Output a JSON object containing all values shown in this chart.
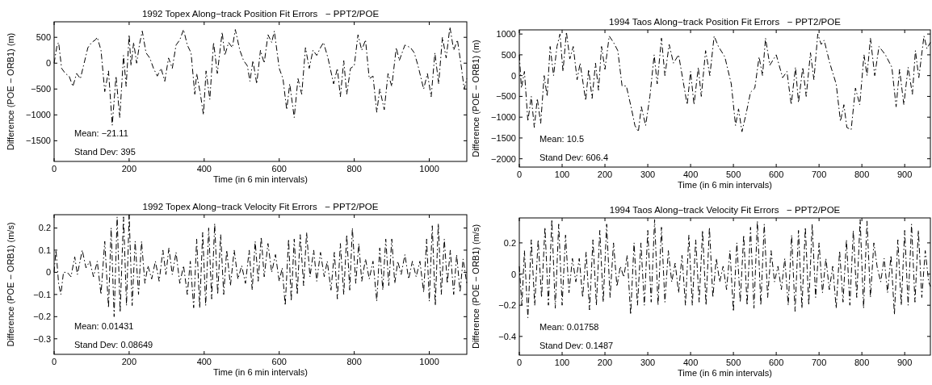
{
  "chart_data": [
    {
      "type": "line",
      "title": "1992 Topex Along−track Position Fit Errors   − PPT2/POE",
      "xlabel": "Time (in 6 min intervals)",
      "ylabel": "Difference (POE − ORB1) (m)",
      "xlim": [
        0,
        1100
      ],
      "ylim": [
        -1900,
        800
      ],
      "xticks": [
        0,
        200,
        400,
        600,
        800,
        1000
      ],
      "yticks": [
        -1500,
        -1000,
        -500,
        0,
        500
      ],
      "grid": false,
      "line_style": "dashed",
      "annotations": [
        "Mean: −21.11",
        "Stand Dev: 395"
      ],
      "series": [
        {
          "color": "#000000",
          "x": [
            0,
            8,
            12,
            20,
            30,
            40,
            50,
            60,
            70,
            80,
            90,
            100,
            110,
            115,
            125,
            135,
            145,
            155,
            165,
            175,
            185,
            192,
            200,
            205,
            212,
            220,
            228,
            235,
            245,
            255,
            265,
            275,
            285,
            295,
            305,
            315,
            325,
            335,
            345,
            355,
            365,
            375,
            380,
            390,
            398,
            405,
            415,
            425,
            435,
            448,
            455,
            465,
            475,
            483,
            495,
            505,
            515,
            522,
            530,
            540,
            550,
            560,
            570,
            580,
            587,
            600,
            610,
            620,
            628,
            640,
            650,
            660,
            670,
            680,
            690,
            700,
            710,
            718,
            730,
            745,
            755,
            763,
            772,
            780,
            790,
            800,
            810,
            820,
            830,
            840,
            850,
            860,
            868,
            880,
            890,
            900,
            912,
            920,
            935,
            950,
            960,
            970,
            985,
            995,
            1005,
            1015,
            1025,
            1035,
            1045,
            1055,
            1065,
            1075,
            1085,
            1093,
            1100
          ],
          "values": [
            0,
            350,
            400,
            -100,
            -200,
            -250,
            -450,
            -200,
            -300,
            0,
            300,
            400,
            450,
            500,
            250,
            -550,
            -150,
            -1200,
            -250,
            -1050,
            150,
            -450,
            550,
            -50,
            400,
            0,
            380,
            620,
            200,
            100,
            -100,
            -250,
            -100,
            -350,
            100,
            -100,
            350,
            450,
            650,
            350,
            200,
            -600,
            -200,
            -600,
            -1000,
            -150,
            -700,
            400,
            -200,
            600,
            150,
            400,
            300,
            650,
            250,
            50,
            -50,
            -350,
            50,
            -400,
            250,
            0,
            550,
            400,
            620,
            -100,
            -300,
            -900,
            -400,
            -1050,
            -300,
            -600,
            300,
            -100,
            250,
            150,
            300,
            400,
            100,
            -400,
            -100,
            -650,
            50,
            -600,
            -100,
            -50,
            550,
            250,
            450,
            -300,
            -250,
            -950,
            -500,
            -900,
            -200,
            -450,
            300,
            50,
            350,
            300,
            200,
            -50,
            -500,
            -200,
            -650,
            200,
            -400,
            500,
            100,
            700,
            250,
            450,
            -50,
            -500,
            -300
          ]
        }
      ]
    },
    {
      "type": "line",
      "title": "1994 Taos Along−track Position Fit Errors   − PPT2/POE",
      "xlabel": "Time (in 6 min intervals)",
      "ylabel": "Difference (POE − ORB1) (m)",
      "xlim": [
        0,
        960
      ],
      "ylim": [
        -2200,
        1100
      ],
      "xticks": [
        0,
        100,
        200,
        300,
        400,
        500,
        600,
        700,
        800,
        900
      ],
      "yticks": [
        -2000,
        -1500,
        -1000,
        -500,
        0,
        500,
        1000
      ],
      "grid": false,
      "line_style": "dashed",
      "annotations": [
        "Mean: 10.5",
        "Stand Dev: 606.4"
      ],
      "series": [
        {
          "color": "#000000",
          "x": [
            0,
            5,
            12,
            20,
            28,
            35,
            42,
            50,
            58,
            65,
            72,
            80,
            88,
            95,
            102,
            110,
            118,
            126,
            135,
            142,
            155,
            162,
            170,
            178,
            185,
            192,
            200,
            210,
            220,
            230,
            240,
            250,
            262,
            270,
            278,
            285,
            295,
            305,
            315,
            322,
            332,
            340,
            350,
            360,
            372,
            382,
            392,
            400,
            408,
            418,
            425,
            435,
            445,
            455,
            465,
            480,
            495,
            505,
            512,
            520,
            530,
            540,
            550,
            560,
            568,
            575,
            585,
            600,
            615,
            625,
            635,
            645,
            652,
            662,
            670,
            680,
            688,
            697,
            705,
            712,
            725,
            740,
            750,
            758,
            765,
            775,
            785,
            795,
            805,
            812,
            820,
            830,
            840,
            855,
            870,
            880,
            888,
            898,
            908,
            918,
            925,
            933,
            945,
            952,
            960
          ],
          "values": [
            500,
            -300,
            100,
            -1100,
            -500,
            -1250,
            -550,
            -1150,
            0,
            -500,
            700,
            0,
            700,
            1000,
            100,
            1050,
            400,
            700,
            -100,
            300,
            -600,
            150,
            -550,
            300,
            -350,
            700,
            150,
            950,
            800,
            600,
            -250,
            -250,
            -800,
            -1200,
            -1350,
            -750,
            -1200,
            -500,
            500,
            -200,
            900,
            0,
            750,
            300,
            500,
            -100,
            -700,
            100,
            -700,
            200,
            -500,
            600,
            0,
            950,
            700,
            450,
            -200,
            -1200,
            -800,
            -1350,
            -900,
            -400,
            -300,
            450,
            0,
            900,
            250,
            500,
            -50,
            100,
            -700,
            200,
            -650,
            200,
            -500,
            550,
            -100,
            1000,
            750,
            850,
            300,
            -200,
            -1100,
            -700,
            -1250,
            -1300,
            -300,
            -700,
            500,
            0,
            900,
            0,
            700,
            500,
            200,
            -750,
            150,
            -700,
            200,
            -450,
            600,
            -50,
            950,
            650,
            800
          ]
        }
      ]
    },
    {
      "type": "line",
      "title": "1992 Topex Along−track Velocity Fit Errors   − PPT2/POE",
      "xlabel": "Time (in 6 min intervals)",
      "ylabel": "Difference (POE − ORB1) (m/s)",
      "xlim": [
        0,
        1100
      ],
      "ylim": [
        -0.37,
        0.26
      ],
      "xticks": [
        0,
        200,
        400,
        600,
        800,
        1000
      ],
      "yticks": [
        -0.3,
        -0.2,
        -0.1,
        0,
        0.1,
        0.2
      ],
      "grid": false,
      "line_style": "dashed",
      "annotations": [
        "Mean: 0.01431",
        "Stand Dev: 0.08649"
      ],
      "series": [
        {
          "color": "#000000",
          "x": [
            0,
            5,
            12,
            18,
            25,
            35,
            45,
            55,
            62,
            75,
            85,
            95,
            105,
            115,
            125,
            135,
            145,
            152,
            160,
            168,
            176,
            185,
            193,
            200,
            208,
            216,
            225,
            233,
            242,
            250,
            260,
            270,
            280,
            290,
            298,
            306,
            315,
            325,
            335,
            345,
            355,
            363,
            372,
            380,
            388,
            396,
            404,
            412,
            420,
            428,
            436,
            444,
            452,
            460,
            470,
            480,
            490,
            500,
            510,
            520,
            528,
            536,
            544,
            552,
            560,
            570,
            580,
            590,
            600,
            608,
            616,
            625,
            632,
            640,
            648,
            656,
            665,
            673,
            682,
            692,
            700,
            710,
            720,
            728,
            738,
            747,
            755,
            763,
            772,
            780,
            788,
            795,
            804,
            812,
            820,
            830,
            840,
            850,
            860,
            868,
            876,
            884,
            892,
            900,
            908,
            916,
            925,
            935,
            945,
            955,
            965,
            975,
            985,
            993,
            1000,
            1008,
            1016,
            1024,
            1032,
            1040,
            1048,
            1056,
            1065,
            1073,
            1082,
            1090,
            1100
          ],
          "values": [
            0,
            0.1,
            -0.05,
            -0.1,
            0,
            0,
            -0.02,
            0.07,
            -0.01,
            0.1,
            0.02,
            0.05,
            -0.02,
            0.05,
            -0.1,
            0.14,
            -0.16,
            0.2,
            -0.2,
            0.25,
            -0.18,
            0.25,
            -0.15,
            0.26,
            -0.15,
            0.14,
            -0.1,
            0.14,
            -0.05,
            0.03,
            -0.03,
            0.05,
            -0.04,
            0.1,
            -0.01,
            0.11,
            -0.01,
            0.09,
            -0.05,
            0.03,
            -0.1,
            0.05,
            -0.16,
            0.15,
            -0.16,
            0.18,
            -0.15,
            0.2,
            -0.12,
            0.22,
            -0.1,
            0.17,
            -0.1,
            0.1,
            -0.06,
            0.1,
            -0.03,
            0.03,
            -0.05,
            0.1,
            -0.08,
            0.14,
            -0.04,
            0.16,
            -0.02,
            0.13,
            0,
            0.08,
            -0.04,
            0.02,
            -0.15,
            0.15,
            -0.13,
            0.15,
            -0.1,
            0.17,
            -0.06,
            0.18,
            -0.02,
            0.1,
            -0.04,
            0.09,
            -0.02,
            0.05,
            -0.08,
            0.09,
            -0.12,
            0.13,
            -0.1,
            0.17,
            -0.08,
            0.2,
            -0.05,
            0.13,
            -0.04,
            0.06,
            -0.03,
            0.05,
            -0.13,
            0.11,
            -0.08,
            0.15,
            -0.06,
            0.15,
            -0.05,
            0.05,
            -0.01,
            0.08,
            -0.03,
            0.05,
            -0.02,
            0.05,
            -0.09,
            0.15,
            -0.13,
            0.21,
            -0.15,
            0.22,
            -0.1,
            0.15,
            -0.05,
            0.1,
            -0.1,
            0.08,
            -0.09,
            0.06,
            -0.05
          ]
        }
      ]
    },
    {
      "type": "line",
      "title": "1994 Taos Along−track Velocity Fit Errors   − PPT2/POE",
      "xlabel": "Time (in 6 min intervals)",
      "ylabel": "Difference (POE − ORB1) (m/s)",
      "xlim": [
        0,
        960
      ],
      "ylim": [
        -0.52,
        0.36
      ],
      "xticks": [
        0,
        100,
        200,
        300,
        400,
        500,
        600,
        700,
        800,
        900
      ],
      "yticks": [
        -0.4,
        -0.2,
        0,
        0.2
      ],
      "grid": false,
      "line_style": "dashed",
      "annotations": [
        "Mean: 0.01758",
        "Stand Dev: 0.1487"
      ],
      "series": [
        {
          "color": "#000000",
          "x": [
            0,
            6,
            12,
            20,
            28,
            36,
            44,
            52,
            60,
            68,
            76,
            84,
            92,
            100,
            108,
            116,
            124,
            132,
            140,
            148,
            156,
            164,
            172,
            180,
            188,
            196,
            204,
            212,
            220,
            228,
            236,
            244,
            252,
            260,
            268,
            276,
            284,
            292,
            300,
            308,
            316,
            324,
            332,
            340,
            348,
            356,
            364,
            372,
            380,
            388,
            396,
            404,
            412,
            420,
            428,
            436,
            444,
            452,
            460,
            468,
            476,
            484,
            492,
            500,
            508,
            516,
            524,
            532,
            540,
            548,
            556,
            564,
            572,
            580,
            588,
            596,
            604,
            612,
            620,
            628,
            636,
            644,
            652,
            660,
            668,
            676,
            684,
            692,
            700,
            708,
            716,
            724,
            732,
            740,
            748,
            756,
            764,
            772,
            780,
            788,
            796,
            804,
            812,
            820,
            828,
            836,
            844,
            852,
            860,
            868,
            876,
            884,
            892,
            900,
            908,
            916,
            924,
            932,
            940,
            948,
            956,
            960
          ],
          "values": [
            0.05,
            -0.2,
            0.15,
            -0.28,
            0.22,
            -0.2,
            0.22,
            -0.15,
            0.3,
            -0.2,
            0.35,
            -0.22,
            0.32,
            -0.2,
            0.25,
            -0.12,
            0.1,
            -0.05,
            0.1,
            -0.15,
            0.14,
            -0.23,
            0.22,
            -0.2,
            0.28,
            -0.18,
            0.32,
            -0.15,
            0.2,
            -0.08,
            0.05,
            -0.02,
            0.12,
            -0.26,
            0.2,
            -0.2,
            0.2,
            -0.2,
            0.28,
            -0.18,
            0.35,
            -0.2,
            0.3,
            -0.18,
            0.15,
            -0.05,
            0.07,
            -0.12,
            0.12,
            -0.2,
            0.25,
            -0.2,
            0.22,
            -0.18,
            0.28,
            -0.2,
            0.3,
            -0.15,
            0.1,
            -0.05,
            0.05,
            -0.1,
            0.15,
            -0.24,
            0.2,
            -0.18,
            0.25,
            -0.2,
            0.3,
            -0.22,
            0.34,
            -0.2,
            0.32,
            -0.15,
            0.15,
            -0.05,
            0.05,
            -0.1,
            0.1,
            -0.2,
            0.25,
            -0.24,
            0.28,
            -0.22,
            0.3,
            -0.2,
            0.32,
            -0.15,
            0.2,
            -0.12,
            0.1,
            -0.1,
            0.05,
            -0.22,
            0.15,
            -0.18,
            0.22,
            -0.2,
            0.28,
            -0.15,
            0.35,
            -0.22,
            0.34,
            -0.15,
            0.2,
            0.04,
            -0.05,
            0.1,
            -0.12,
            0.12,
            -0.26,
            0.22,
            -0.2,
            0.28,
            -0.2,
            0.32,
            -0.18,
            0.28,
            -0.15,
            0.15,
            -0.05,
            -0.08
          ]
        }
      ]
    }
  ]
}
